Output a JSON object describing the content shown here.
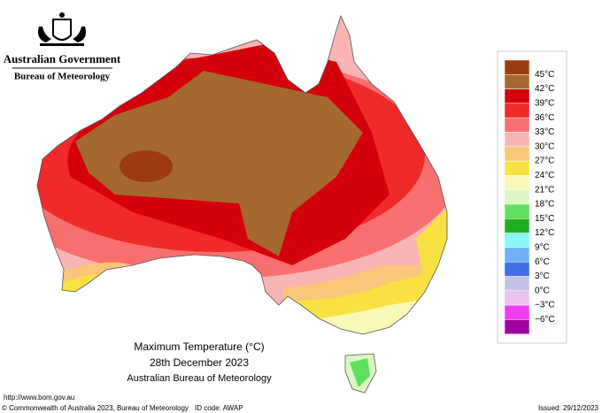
{
  "header": {
    "government": "Australian Government",
    "bureau": "Bureau of Meteorology"
  },
  "legend": {
    "colors": [
      "#9c3b10",
      "#a5682f",
      "#d4000c",
      "#ee2a2a",
      "#f76f6f",
      "#f9b4b4",
      "#f9c77a",
      "#f8e243",
      "#f8f8b8",
      "#dcf7c4",
      "#5fdf5f",
      "#1fae1f",
      "#86f6f6",
      "#6fb0f6",
      "#3e6fe6",
      "#c3c3e8",
      "#eac2ea",
      "#f03cf0",
      "#a000a0"
    ],
    "labels": [
      "45°C",
      "42°C",
      "39°C",
      "36°C",
      "33°C",
      "30°C",
      "27°C",
      "24°C",
      "21°C",
      "18°C",
      "15°C",
      "12°C",
      "9°C",
      "6°C",
      "3°C",
      "0°C",
      "−3°C",
      "−6°C"
    ]
  },
  "caption": {
    "title": "Maximum Temperature (°C)",
    "date": "28th December 2023",
    "source": "Australian Bureau of Meteorology"
  },
  "footer": {
    "url": "http://www.bom.gov.au",
    "copyright": "© Commonwealth of Australia 2023, Bureau of Meteorology",
    "id_code": "ID code: AWAP",
    "issued": "Issued: 29/12/2023"
  }
}
